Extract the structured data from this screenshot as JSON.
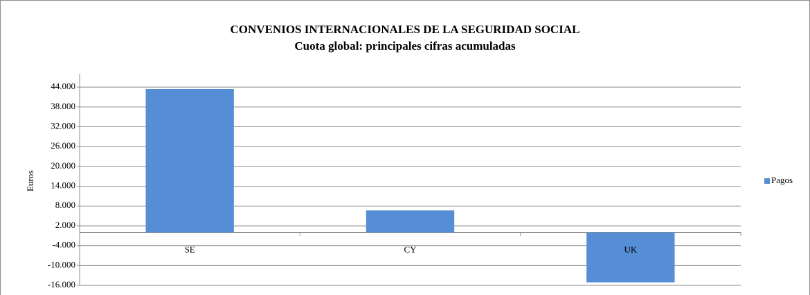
{
  "chart_data": {
    "type": "bar",
    "title": "CONVENIOS INTERNACIONALES DE LA SEGURIDAD SOCIAL",
    "subtitle": "Cuota global: principales cifras acumuladas",
    "y_label": "Euros",
    "categories": [
      "SE",
      "CY",
      "UK"
    ],
    "series": [
      {
        "name": "Pagos",
        "color": "#558ed5",
        "values": [
          43400,
          6700,
          -15100
        ]
      }
    ],
    "ylim": [
      -16000,
      48000
    ],
    "yticks": [
      {
        "value": -16000,
        "label": "-16.000"
      },
      {
        "value": -10000,
        "label": "-10.000"
      },
      {
        "value": -4000,
        "label": "-4.000"
      },
      {
        "value": 2000,
        "label": "2.000"
      },
      {
        "value": 8000,
        "label": "8.000"
      },
      {
        "value": 14000,
        "label": "14.000"
      },
      {
        "value": 20000,
        "label": "20.000"
      },
      {
        "value": 26000,
        "label": "26.000"
      },
      {
        "value": 32000,
        "label": "32.000"
      },
      {
        "value": 38000,
        "label": "38.000"
      },
      {
        "value": 44000,
        "label": "44.000"
      }
    ],
    "grid": true,
    "legend": "right"
  }
}
